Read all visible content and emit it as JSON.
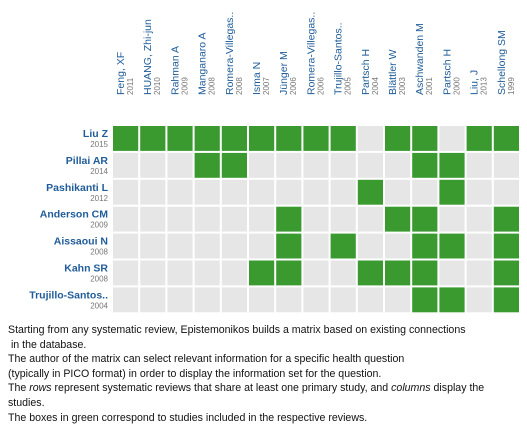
{
  "matrix": {
    "columns": [
      {
        "name": "Feng, XF",
        "year": "2011"
      },
      {
        "name": "HUANG, Zhi-jun",
        "year": "2010"
      },
      {
        "name": "Rahman A",
        "year": "2009"
      },
      {
        "name": "Manganaro A",
        "year": "2008"
      },
      {
        "name": "Romera-Villegas..",
        "year": "2008"
      },
      {
        "name": "Isma N",
        "year": "2007"
      },
      {
        "name": "Jünger M",
        "year": "2006"
      },
      {
        "name": "Romera-Villegas..",
        "year": "2006"
      },
      {
        "name": "Trujillo-Santos..",
        "year": "2005"
      },
      {
        "name": "Partsch H",
        "year": "2004"
      },
      {
        "name": "Blättler W",
        "year": "2003"
      },
      {
        "name": "Aschwanden M",
        "year": "2001"
      },
      {
        "name": "Partsch H",
        "year": "2000"
      },
      {
        "name": "Liu, J",
        "year": "2013"
      },
      {
        "name": "Schellong SM",
        "year": "1999"
      }
    ],
    "rows": [
      {
        "name": "Liu Z",
        "year": "2015",
        "included": [
          true,
          true,
          true,
          true,
          true,
          true,
          true,
          true,
          true,
          false,
          true,
          true,
          false,
          true,
          true
        ]
      },
      {
        "name": "Pillai AR",
        "year": "2014",
        "included": [
          false,
          false,
          false,
          true,
          true,
          false,
          false,
          false,
          false,
          false,
          false,
          true,
          true,
          false,
          false
        ]
      },
      {
        "name": "Pashikanti L",
        "year": "2012",
        "included": [
          false,
          false,
          false,
          false,
          false,
          false,
          false,
          false,
          false,
          true,
          false,
          false,
          true,
          false,
          false
        ]
      },
      {
        "name": "Anderson CM",
        "year": "2009",
        "included": [
          false,
          false,
          false,
          false,
          false,
          false,
          true,
          false,
          false,
          false,
          true,
          true,
          false,
          false,
          true
        ]
      },
      {
        "name": "Aissaoui N",
        "year": "2008",
        "included": [
          false,
          false,
          false,
          false,
          false,
          false,
          true,
          false,
          true,
          false,
          false,
          true,
          true,
          false,
          true
        ]
      },
      {
        "name": "Kahn SR",
        "year": "2008",
        "included": [
          false,
          false,
          false,
          false,
          false,
          true,
          true,
          false,
          false,
          true,
          true,
          true,
          false,
          false,
          true
        ]
      },
      {
        "name": "Trujillo-Santos..",
        "year": "2004",
        "included": [
          false,
          false,
          false,
          false,
          false,
          false,
          false,
          false,
          false,
          false,
          false,
          true,
          true,
          false,
          true
        ]
      }
    ],
    "included_color": "#3a9a30",
    "empty_color": "#e6e6e6"
  },
  "caption": {
    "lines": [
      "Starting from any systematic review, Epistemonikos builds a matrix based on existing connections",
      " in the database.",
      "The author of the matrix can select relevant information for a specific health question",
      "(typically in PICO format) in order to display the information set for the question.",
      [
        {
          "text": "The ",
          "italic": false
        },
        {
          "text": "rows",
          "italic": true
        },
        {
          "text": " represent systematic reviews that share at least one primary study, and ",
          "italic": false
        },
        {
          "text": "columns",
          "italic": true
        },
        {
          "text": " display the",
          "italic": false
        }
      ],
      "studies.",
      "The boxes in green correspond to studies included in the respective reviews."
    ]
  }
}
